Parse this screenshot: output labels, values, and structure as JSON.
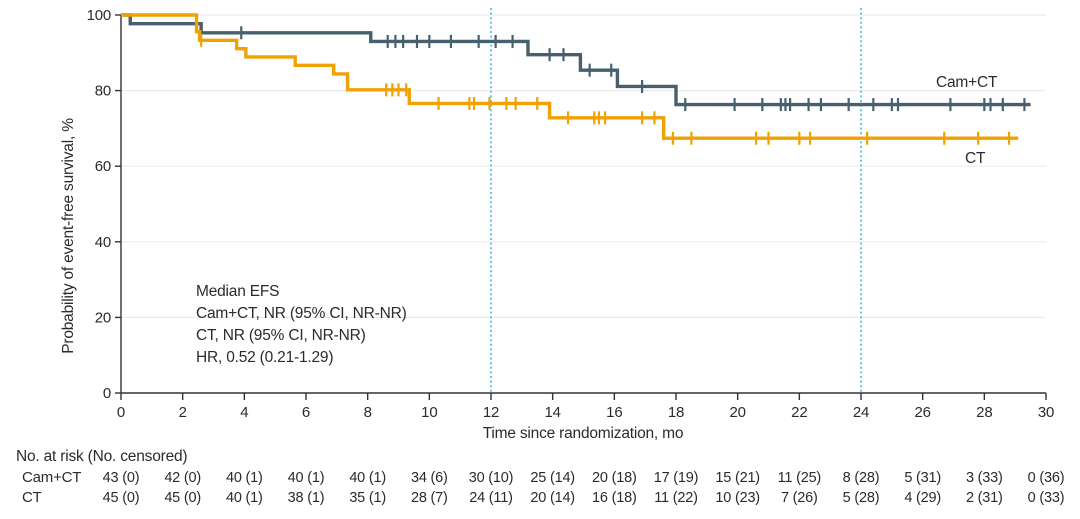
{
  "figure": {
    "y_axis_title": "Probability of event-free survival, %",
    "x_axis_title": "Time since randomization, mo",
    "legend": {
      "camct": "Cam+CT",
      "ct": "CT"
    },
    "annotation": {
      "lines": [
        "Median EFS",
        "Cam+CT, NR (95% CI, NR-NR)",
        "CT, NR (95% CI, NR-NR)",
        "HR, 0.52 (0.21-1.29)"
      ]
    }
  },
  "chart_data": {
    "type": "line",
    "subtype": "kaplan-meier-step",
    "title": "",
    "xlabel": "Time since randomization, mo",
    "ylabel": "Probability of event-free survival, %",
    "xlim": [
      0,
      30
    ],
    "ylim": [
      0,
      100
    ],
    "x_ticks": [
      0,
      2,
      4,
      6,
      8,
      10,
      12,
      14,
      16,
      18,
      20,
      22,
      24,
      26,
      28,
      30
    ],
    "y_ticks": [
      0,
      20,
      40,
      60,
      80,
      100
    ],
    "grid": "horizontal",
    "reference_lines_x": [
      12,
      24
    ],
    "colors": {
      "camct": "#46606D",
      "ct": "#F0A104",
      "reference_line": "#4FC3E9",
      "grid": "#EBEBEB",
      "axis": "#333333"
    },
    "series": [
      {
        "name": "Cam+CT",
        "color": "#46606D",
        "steps": [
          [
            0,
            100
          ],
          [
            0.3,
            97.7
          ],
          [
            2.6,
            95.3
          ],
          [
            8.1,
            93.0
          ],
          [
            13.2,
            89.5
          ],
          [
            14.9,
            85.4
          ],
          [
            16.1,
            81.1
          ],
          [
            18.0,
            76.3
          ],
          [
            29.5,
            76.3
          ]
        ],
        "censor_marks": [
          [
            3.9,
            95.3
          ],
          [
            8.65,
            93.0
          ],
          [
            8.9,
            93.0
          ],
          [
            9.15,
            93.0
          ],
          [
            9.6,
            93.0
          ],
          [
            10.0,
            93.0
          ],
          [
            10.7,
            93.0
          ],
          [
            11.6,
            93.0
          ],
          [
            12.15,
            93.0
          ],
          [
            12.7,
            93.0
          ],
          [
            13.9,
            89.5
          ],
          [
            14.35,
            89.5
          ],
          [
            15.2,
            85.4
          ],
          [
            15.9,
            85.4
          ],
          [
            16.9,
            81.1
          ],
          [
            18.3,
            76.3
          ],
          [
            19.9,
            76.3
          ],
          [
            20.8,
            76.3
          ],
          [
            21.4,
            76.3
          ],
          [
            21.55,
            76.3
          ],
          [
            21.7,
            76.3
          ],
          [
            22.3,
            76.3
          ],
          [
            22.7,
            76.3
          ],
          [
            23.6,
            76.3
          ],
          [
            24.4,
            76.3
          ],
          [
            25.0,
            76.3
          ],
          [
            25.2,
            76.3
          ],
          [
            26.9,
            76.3
          ],
          [
            28.0,
            76.3
          ],
          [
            28.2,
            76.3
          ],
          [
            28.6,
            76.3
          ],
          [
            29.3,
            76.3
          ]
        ]
      },
      {
        "name": "CT",
        "color": "#F0A104",
        "steps": [
          [
            0,
            100
          ],
          [
            2.45,
            95.6
          ],
          [
            2.55,
            93.3
          ],
          [
            3.75,
            91.1
          ],
          [
            4.05,
            88.9
          ],
          [
            5.65,
            86.7
          ],
          [
            6.9,
            84.4
          ],
          [
            7.35,
            80.2
          ],
          [
            9.35,
            76.6
          ],
          [
            13.9,
            72.8
          ],
          [
            17.6,
            67.4
          ],
          [
            29.1,
            67.4
          ]
        ],
        "censor_marks": [
          [
            2.6,
            93.3
          ],
          [
            8.6,
            80.2
          ],
          [
            8.8,
            80.2
          ],
          [
            9.0,
            80.2
          ],
          [
            9.25,
            80.2
          ],
          [
            10.3,
            76.6
          ],
          [
            11.3,
            76.6
          ],
          [
            11.45,
            76.6
          ],
          [
            11.95,
            76.6
          ],
          [
            12.5,
            76.6
          ],
          [
            12.8,
            76.6
          ],
          [
            13.5,
            76.6
          ],
          [
            14.5,
            72.8
          ],
          [
            15.35,
            72.8
          ],
          [
            15.5,
            72.8
          ],
          [
            15.7,
            72.8
          ],
          [
            16.9,
            72.8
          ],
          [
            17.3,
            72.8
          ],
          [
            17.9,
            67.4
          ],
          [
            18.5,
            67.4
          ],
          [
            20.6,
            67.4
          ],
          [
            21.0,
            67.4
          ],
          [
            22.0,
            67.4
          ],
          [
            22.35,
            67.4
          ],
          [
            24.2,
            67.4
          ],
          [
            26.7,
            67.4
          ],
          [
            27.8,
            67.4
          ],
          [
            28.8,
            67.4
          ]
        ]
      }
    ]
  },
  "risk_table": {
    "header": "No. at risk (No. censored)",
    "time_points": [
      0,
      2,
      4,
      6,
      8,
      10,
      12,
      14,
      16,
      18,
      20,
      22,
      24,
      26,
      28,
      30
    ],
    "rows": [
      {
        "label": "Cam+CT",
        "values": [
          "43 (0)",
          "42 (0)",
          "40 (1)",
          "40 (1)",
          "40 (1)",
          "34 (6)",
          "30 (10)",
          "25 (14)",
          "20 (18)",
          "17 (19)",
          "15 (21)",
          "11 (25)",
          "8 (28)",
          "5 (31)",
          "3 (33)",
          "0 (36)"
        ]
      },
      {
        "label": "CT",
        "values": [
          "45 (0)",
          "45 (0)",
          "40 (1)",
          "38 (1)",
          "35 (1)",
          "28 (7)",
          "24 (11)",
          "20 (14)",
          "16 (18)",
          "11 (22)",
          "10 (23)",
          "7 (26)",
          "5 (28)",
          "4 (29)",
          "2 (31)",
          "0 (33)"
        ]
      }
    ]
  }
}
